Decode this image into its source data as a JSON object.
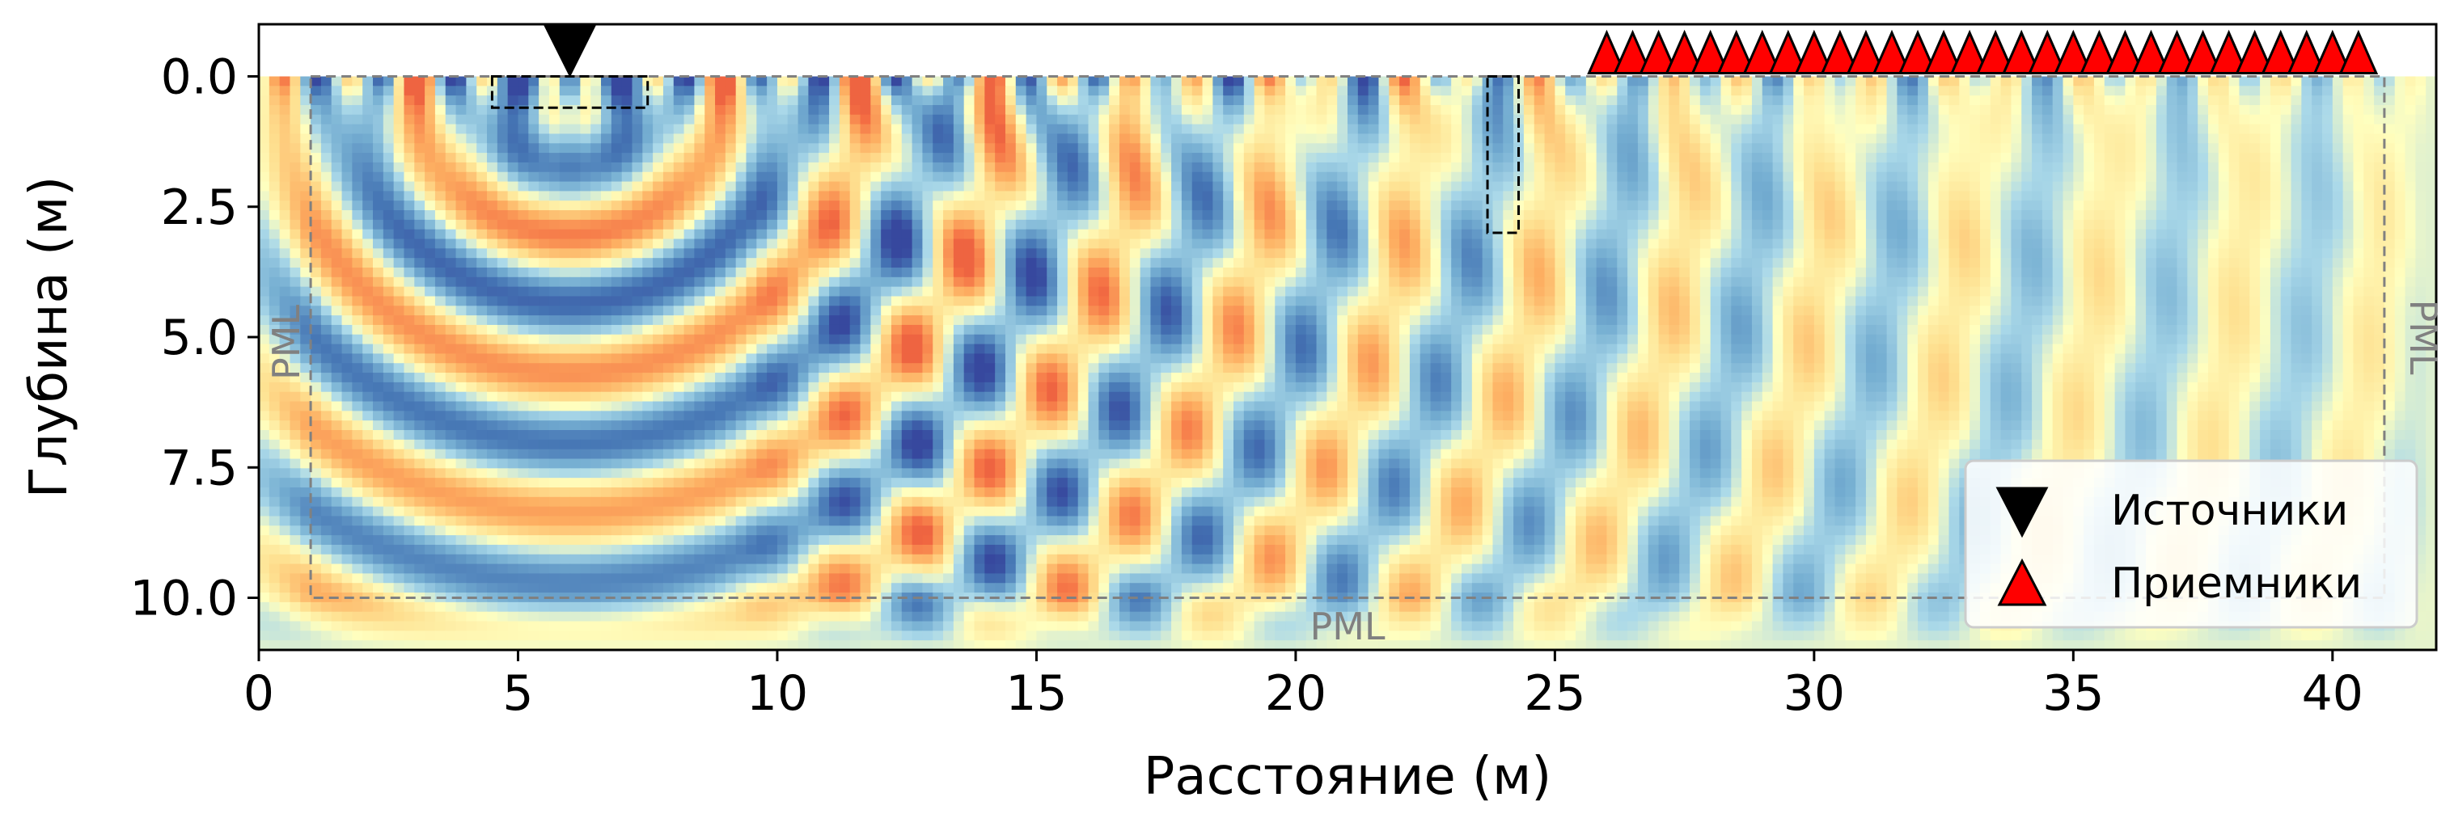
{
  "chart_data": {
    "type": "heatmap",
    "title": "",
    "xlabel": "Расстояние (м)",
    "ylabel": "Глубина (м)",
    "xlim": [
      0,
      42
    ],
    "ylim": [
      11,
      -1
    ],
    "x_ticks": [
      0,
      5,
      10,
      15,
      20,
      25,
      30,
      35,
      40
    ],
    "x_tick_labels": [
      "0",
      "5",
      "10",
      "15",
      "20",
      "25",
      "30",
      "35",
      "40"
    ],
    "y_ticks": [
      0,
      2.5,
      5,
      7.5,
      10
    ],
    "y_tick_labels": [
      "0.0",
      "2.5",
      "5.0",
      "7.5",
      "10.0"
    ],
    "grid": false,
    "colormap": "RdYlBu_r",
    "field_extent": {
      "x": [
        0,
        42
      ],
      "y": [
        0,
        11
      ]
    },
    "pml": {
      "label_left": "PML",
      "label_right": "PML",
      "label_bottom": "PML",
      "boundary_x": [
        1,
        41
      ],
      "boundary_y": [
        0,
        10
      ]
    },
    "source": {
      "x": 6,
      "y": 0
    },
    "receivers": {
      "x_start": 26,
      "x_end": 40.5,
      "count": 30,
      "y": 0
    },
    "dashed_boxes": [
      {
        "x": [
          4.5,
          7.5
        ],
        "y": [
          0,
          0.6
        ]
      },
      {
        "x": [
          23.7,
          24.3
        ],
        "y": [
          0,
          3
        ]
      }
    ],
    "legend": {
      "placement": "lower-right",
      "entries": [
        {
          "label": "Источники",
          "marker": "triangle-down",
          "color": "#000000"
        },
        {
          "label": "Приемники",
          "marker": "triangle-up",
          "color": "#ff0000"
        }
      ]
    }
  }
}
